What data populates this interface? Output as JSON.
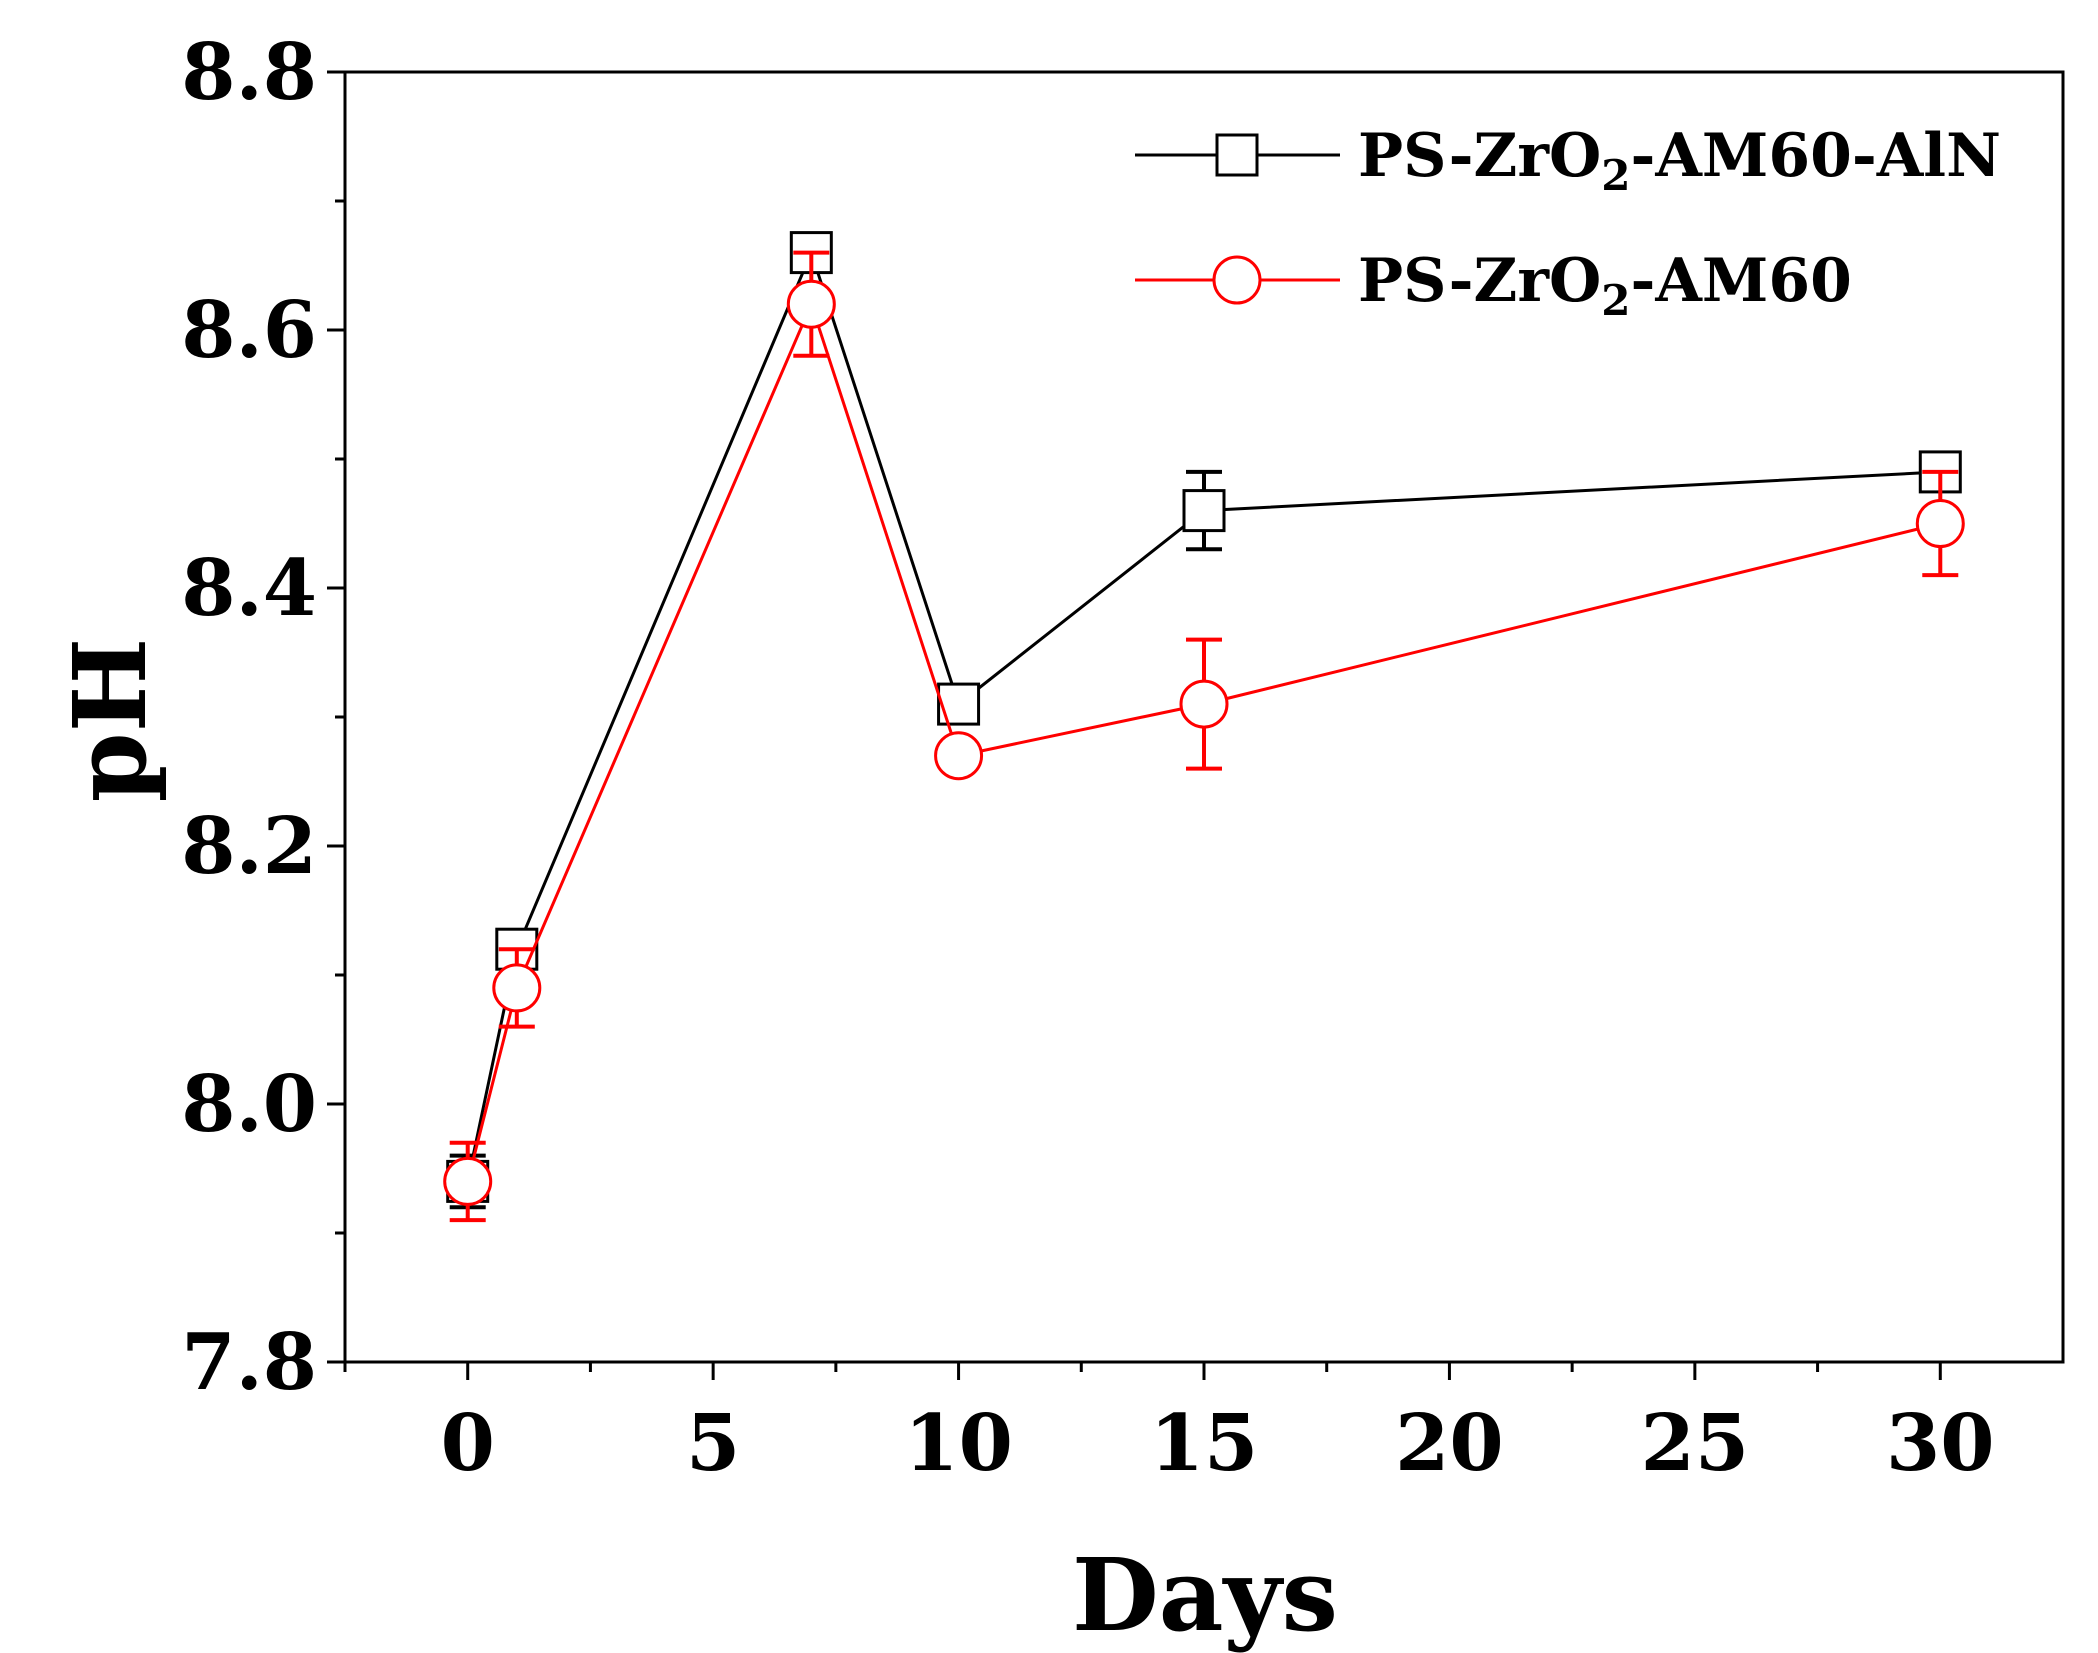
{
  "chart_data": {
    "type": "line",
    "title": "",
    "xlabel": "Days",
    "ylabel": "pH",
    "xlim": [
      -2.5,
      32.5
    ],
    "ylim": [
      7.8,
      8.8
    ],
    "xticks": [
      0,
      5,
      10,
      15,
      20,
      25,
      30
    ],
    "xtick_labels": [
      "0",
      "5",
      "10",
      "15",
      "20",
      "25",
      "30"
    ],
    "yticks": [
      7.8,
      8.0,
      8.2,
      8.4,
      8.6,
      8.8
    ],
    "ytick_labels": [
      "7.8",
      "8.0",
      "8.2",
      "8.4",
      "8.6",
      "8.8"
    ],
    "x": [
      0,
      1,
      7,
      10,
      15,
      30
    ],
    "legend_position": "top-right",
    "series": [
      {
        "name": "PS-ZrO2-AM60-AlN",
        "legend_parts": [
          "PS-ZrO",
          "2",
          "-AM60-AlN"
        ],
        "color": "#000000",
        "marker": "square",
        "values": [
          7.94,
          8.12,
          8.66,
          8.31,
          8.46,
          8.49
        ],
        "errors": [
          0.02,
          0.01,
          0.01,
          0.01,
          0.03,
          0.01
        ]
      },
      {
        "name": "PS-ZrO2-AM60",
        "legend_parts": [
          "PS-ZrO",
          "2",
          "-AM60"
        ],
        "color": "#ff0000",
        "marker": "circle",
        "values": [
          7.94,
          8.09,
          8.62,
          8.27,
          8.31,
          8.45
        ],
        "errors": [
          0.03,
          0.03,
          0.04,
          0.01,
          0.05,
          0.04
        ]
      }
    ]
  }
}
